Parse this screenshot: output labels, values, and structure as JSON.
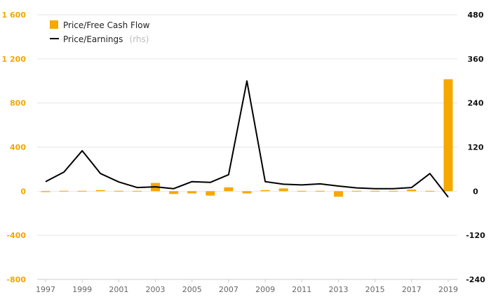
{
  "chart_data": {
    "type": "bar",
    "x": [
      1997,
      1998,
      1999,
      2000,
      2001,
      2002,
      2003,
      2004,
      2005,
      2006,
      2007,
      2008,
      2009,
      2010,
      2011,
      2012,
      2013,
      2014,
      2015,
      2016,
      2017,
      2018,
      2019
    ],
    "x_tick_labels": [
      "1997",
      "1999",
      "2001",
      "2003",
      "2005",
      "2007",
      "2009",
      "2011",
      "2013",
      "2015",
      "2017",
      "2019"
    ],
    "y_left": {
      "ylim": [
        -800,
        1600
      ],
      "ticks": [
        -800,
        -400,
        0,
        400,
        800,
        1200,
        1600
      ],
      "tick_labels": [
        "-800",
        "-400",
        "0",
        "400",
        "800",
        "1 200",
        "1 600"
      ]
    },
    "y_right": {
      "ylim": [
        -240,
        480
      ],
      "ticks": [
        -240,
        -120,
        0,
        120,
        240,
        360,
        480
      ],
      "tick_labels": [
        "-240",
        "-120",
        "0",
        "120",
        "240",
        "360",
        "480"
      ]
    },
    "series": [
      {
        "name": "Price/Free Cash Flow",
        "kind": "bar",
        "axis": "left",
        "color": "#f5a800",
        "values": [
          -8,
          -6,
          0,
          10,
          -5,
          -3,
          75,
          -25,
          -20,
          -40,
          35,
          -20,
          10,
          25,
          -5,
          -5,
          -50,
          -3,
          -3,
          -5,
          15,
          0,
          1015
        ]
      },
      {
        "name": "Price/Earnings",
        "name_suffix": "(rhs)",
        "kind": "line",
        "axis": "right",
        "color": "#000000",
        "values": [
          26,
          52,
          110,
          48,
          25,
          10,
          12,
          7,
          26,
          24,
          45,
          300,
          26,
          19,
          17,
          20,
          14,
          9,
          7,
          7,
          10,
          48,
          -16
        ]
      }
    ],
    "grid": true,
    "legend_position": "top-left"
  }
}
